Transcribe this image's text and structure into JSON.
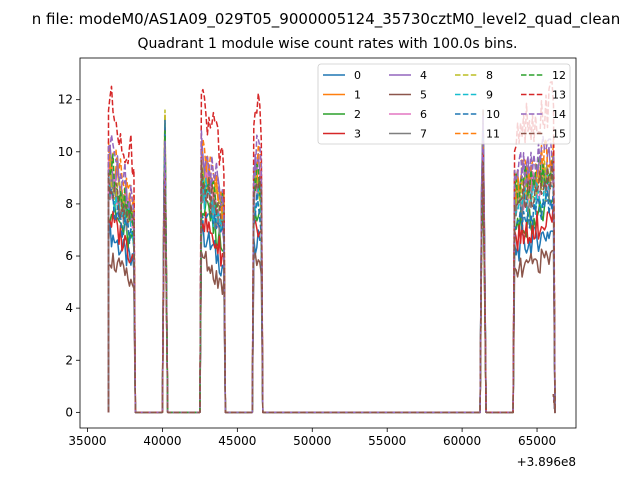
{
  "suptitle": "n file: modeM0/AS1A09_029T05_9000005124_35730cztM0_level2_quad_clean",
  "chart_data": {
    "type": "line",
    "title": "Quadrant 1 module wise count rates with 100.0s bins.",
    "xlabel": "",
    "ylabel": "",
    "x_offset_label": "+3.896e8",
    "xlim": [
      34500,
      67600
    ],
    "ylim": [
      -0.6,
      13.6
    ],
    "xticks": [
      35000,
      40000,
      45000,
      50000,
      55000,
      60000,
      65000
    ],
    "yticks": [
      0,
      2,
      4,
      6,
      8,
      10,
      12
    ],
    "grid": false,
    "legend": {
      "placement": "top-right",
      "ncol": 4
    },
    "colors": [
      "#1f77b4",
      "#ff7f0e",
      "#2ca02c",
      "#d62728",
      "#9467bd",
      "#8c564b",
      "#e377c2",
      "#7f7f7f",
      "#bcbd22",
      "#17becf",
      "#1f77b4",
      "#ff7f0e",
      "#2ca02c",
      "#d62728",
      "#9467bd",
      "#8c564b"
    ],
    "series": [
      {
        "name": "0",
        "linestyle": "solid",
        "level": 6.6
      },
      {
        "name": "1",
        "linestyle": "solid",
        "level": 9.0
      },
      {
        "name": "2",
        "linestyle": "solid",
        "level": 7.5
      },
      {
        "name": "3",
        "linestyle": "solid",
        "level": 7.1
      },
      {
        "name": "4",
        "linestyle": "solid",
        "level": 9.3
      },
      {
        "name": "5",
        "linestyle": "solid",
        "level": 5.7
      },
      {
        "name": "6",
        "linestyle": "solid",
        "level": 8.6
      },
      {
        "name": "7",
        "linestyle": "solid",
        "level": 8.3
      },
      {
        "name": "8",
        "linestyle": "dashed",
        "level": 8.8
      },
      {
        "name": "9",
        "linestyle": "dashed",
        "level": 8.2
      },
      {
        "name": "10",
        "linestyle": "dashed",
        "level": 7.7
      },
      {
        "name": "11",
        "linestyle": "dashed",
        "level": 9.4
      },
      {
        "name": "12",
        "linestyle": "dashed",
        "level": 9.0
      },
      {
        "name": "13",
        "linestyle": "dashed",
        "level": 11.3
      },
      {
        "name": "14",
        "linestyle": "dashed",
        "level": 9.7
      },
      {
        "name": "15",
        "linestyle": "dashed",
        "level": 8.5
      }
    ],
    "segments": [
      {
        "start": 36400,
        "end": 38100,
        "shape": "decay"
      },
      {
        "start": 40100,
        "end": 40250,
        "shape": "spike"
      },
      {
        "start": 42600,
        "end": 44100,
        "shape": "decay"
      },
      {
        "start": 46100,
        "end": 46600,
        "shape": "bump"
      },
      {
        "start": 61300,
        "end": 61500,
        "shape": "spike"
      },
      {
        "start": 63500,
        "end": 66100,
        "shape": "rise"
      }
    ]
  }
}
